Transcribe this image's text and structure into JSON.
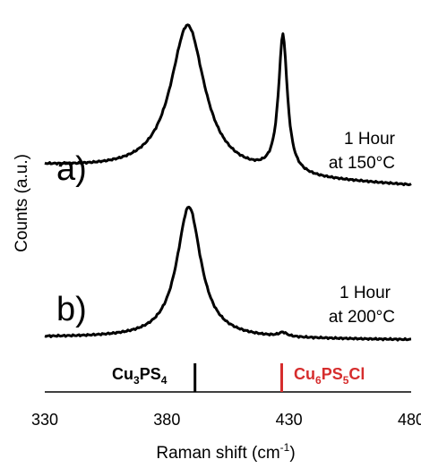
{
  "colors": {
    "line": "#000000",
    "ref_cu3ps4": "#000000",
    "ref_cu6ps5cl": "#d62d2d"
  },
  "chart_data": {
    "type": "line",
    "xlabel_main": "Raman shift (cm",
    "xlabel_sup": "-1",
    "xlabel_end": ")",
    "ylabel": "Counts (a.u.)",
    "xlim": [
      330,
      480
    ],
    "xticks": [
      "330",
      "380",
      "430",
      "480"
    ],
    "grid": false,
    "panels": [
      {
        "label": "a)",
        "condition_line1": "1 Hour",
        "condition_line2": "at 150°C",
        "peaks": [
          {
            "position": 388.5,
            "relative_intensity": 1.0
          },
          {
            "position": 427.5,
            "relative_intensity": 0.93
          }
        ]
      },
      {
        "label": "b)",
        "condition_line1": "1 Hour",
        "condition_line2": "at 200°C",
        "peaks": [
          {
            "position": 389.0,
            "relative_intensity": 1.0
          },
          {
            "position": 427.5,
            "relative_intensity": 0.03
          }
        ]
      }
    ],
    "reference_lines": [
      {
        "position": 391.5,
        "label_parts": [
          "Cu",
          "3",
          "PS",
          "4"
        ],
        "color": "#000000"
      },
      {
        "position": 427.0,
        "label_parts": [
          "Cu",
          "6",
          "PS",
          "5",
          "Cl"
        ],
        "color": "#d62d2d"
      }
    ]
  }
}
